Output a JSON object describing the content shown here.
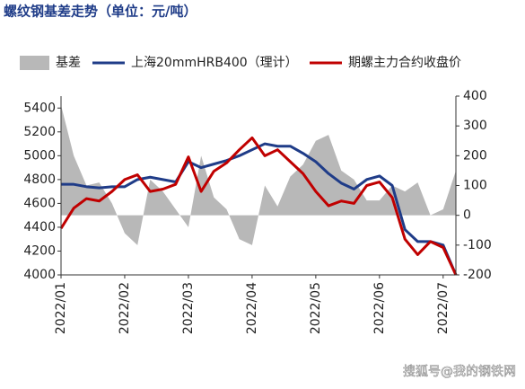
{
  "chart_data": {
    "type": "line",
    "title": "螺纹钢基差走势（单位：元/吨）",
    "watermark": "搜狐号@我的钢铁网",
    "categories": [
      "2022/01",
      null,
      null,
      null,
      null,
      "2022/02",
      null,
      null,
      null,
      null,
      "2022/03",
      null,
      null,
      null,
      null,
      "2022/04",
      null,
      null,
      null,
      null,
      "2022/05",
      null,
      null,
      null,
      null,
      "2022/06",
      null,
      null,
      null,
      null,
      "2022/07",
      null
    ],
    "series": [
      {
        "name": "基差",
        "type": "area",
        "axis": "y2",
        "color": "#b8b8b8",
        "values": [
          370,
          200,
          100,
          110,
          40,
          -60,
          -100,
          120,
          80,
          20,
          -40,
          200,
          60,
          20,
          -80,
          -100,
          100,
          30,
          130,
          170,
          250,
          270,
          150,
          120,
          50,
          50,
          100,
          80,
          110,
          0,
          20,
          150
        ]
      },
      {
        "name": "上海20mmHRB400（理计）",
        "color": "#1f3c88",
        "values": [
          4760,
          4760,
          4740,
          4730,
          4740,
          4740,
          4800,
          4820,
          4800,
          4780,
          4950,
          4900,
          4930,
          4960,
          5000,
          5050,
          5100,
          5080,
          5080,
          5020,
          4950,
          4850,
          4770,
          4720,
          4800,
          4830,
          4750,
          4380,
          4280,
          4280,
          4250,
          4000
        ]
      },
      {
        "name": "期螺主力合约收盘价",
        "color": "#c00000",
        "values": [
          4390,
          4560,
          4640,
          4620,
          4700,
          4800,
          4840,
          4700,
          4720,
          4760,
          4990,
          4700,
          4870,
          4940,
          5050,
          5150,
          5000,
          5050,
          4950,
          4850,
          4700,
          4580,
          4620,
          4600,
          4750,
          4780,
          4650,
          4300,
          4170,
          4280,
          4230,
          4000
        ]
      }
    ],
    "ylim": [
      4000,
      5500
    ],
    "yticks": [
      4000,
      4200,
      4400,
      4600,
      4800,
      5000,
      5200,
      5400
    ],
    "y2lim": [
      -200,
      400
    ],
    "y2ticks": [
      -200,
      -100,
      0,
      100,
      200,
      300,
      400
    ]
  }
}
